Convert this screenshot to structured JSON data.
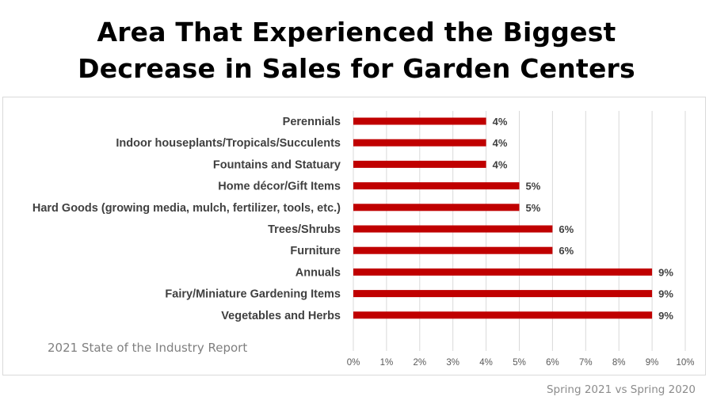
{
  "title_line1": "Area That Experienced the Biggest",
  "title_line2": "Decrease in Sales for Garden Centers",
  "source": "2021 State of the Industry Report",
  "footnote": "Spring 2021 vs Spring 2020",
  "chart_data": {
    "type": "bar",
    "orientation": "horizontal",
    "categories": [
      "Perennials",
      "Indoor houseplants/Tropicals/Succulents",
      "Fountains and Statuary",
      "Home décor/Gift Items",
      "Hard Goods (growing media, mulch, fertilizer, tools, etc.)",
      "Trees/Shrubs",
      "Furniture",
      "Annuals",
      "Fairy/Miniature Gardening Items",
      "Vegetables and Herbs"
    ],
    "values": [
      4,
      4,
      4,
      5,
      5,
      6,
      6,
      9,
      9,
      9
    ],
    "data_labels": [
      "4%",
      "4%",
      "4%",
      "5%",
      "5%",
      "6%",
      "6%",
      "9%",
      "9%",
      "9%"
    ],
    "xlim": [
      0,
      10
    ],
    "x_ticks": [
      "0%",
      "1%",
      "2%",
      "3%",
      "4%",
      "5%",
      "6%",
      "7%",
      "8%",
      "9%",
      "10%"
    ],
    "grid": true,
    "bar_color": "#c00000",
    "grid_color": "#d9d9d9"
  }
}
